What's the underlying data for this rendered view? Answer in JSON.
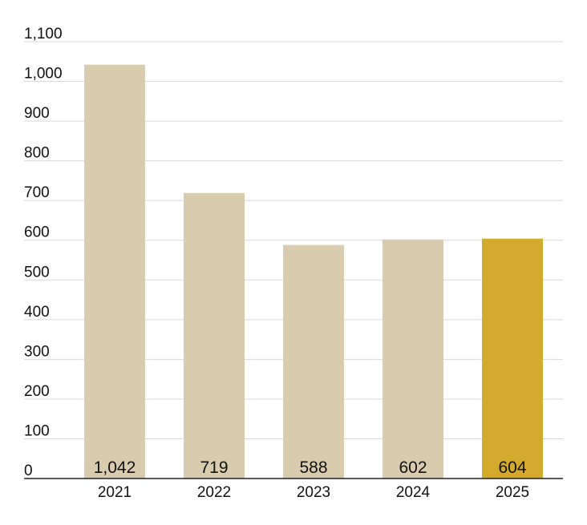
{
  "chart_data": {
    "type": "bar",
    "categories": [
      "2021",
      "2022",
      "2023",
      "2024",
      "2025"
    ],
    "values": [
      1042,
      719,
      588,
      602,
      604
    ],
    "value_labels": [
      "1,042",
      "719",
      "588",
      "602",
      "604"
    ],
    "ylim": [
      0,
      1100
    ],
    "y_ticks": [
      0,
      100,
      200,
      300,
      400,
      500,
      600,
      700,
      800,
      900,
      1000,
      1100
    ],
    "y_tick_labels": [
      "0",
      "100",
      "200",
      "300",
      "400",
      "500",
      "600",
      "700",
      "800",
      "900",
      "1,000",
      "1,100"
    ],
    "grid": true,
    "colors": {
      "default_bar": "#d9cbae",
      "highlight_bar": "#d4aa2c"
    },
    "highlight_category": "2025"
  }
}
